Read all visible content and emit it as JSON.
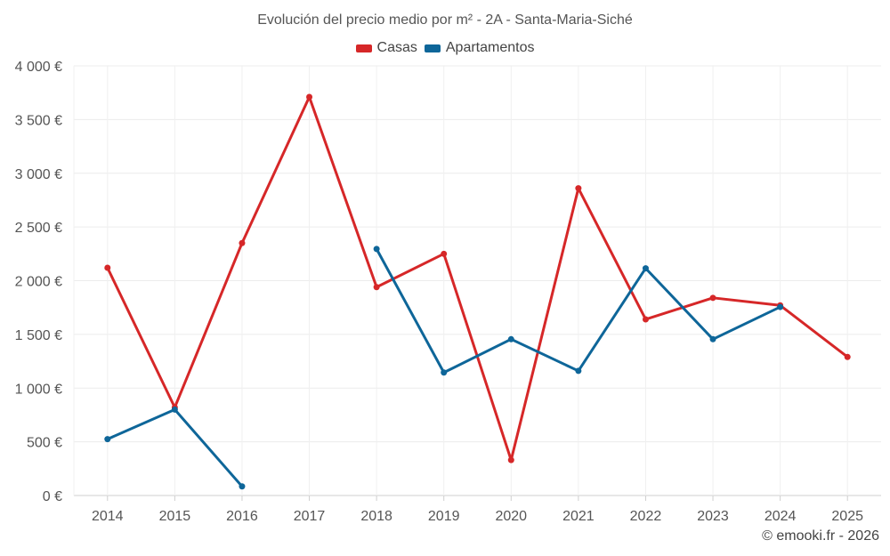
{
  "chart_data": {
    "type": "line",
    "title": "Evolución del precio medio por m² - 2A - Santa-Maria-Siché",
    "categories": [
      "2014",
      "2015",
      "2016",
      "2017",
      "2018",
      "2019",
      "2020",
      "2021",
      "2022",
      "2023",
      "2024",
      "2025"
    ],
    "ylim": [
      0,
      4000
    ],
    "yticks": [
      0,
      500,
      1000,
      1500,
      2000,
      2500,
      3000,
      3500,
      4000
    ],
    "ytick_labels": [
      "0 €",
      "500 €",
      "1 000 €",
      "1 500 €",
      "2 000 €",
      "2 500 €",
      "3 000 €",
      "3 500 €",
      "4 000 €"
    ],
    "grid": true,
    "legend_position": "top-center",
    "series": [
      {
        "name": "Casas",
        "color": "#d62728",
        "values": [
          2120,
          820,
          2350,
          3710,
          1940,
          2250,
          330,
          2860,
          1640,
          1840,
          1770,
          1290
        ]
      },
      {
        "name": "Apartamentos",
        "color": "#0e6699",
        "values": [
          525,
          800,
          85,
          null,
          2295,
          1145,
          1455,
          1160,
          2115,
          1455,
          1755,
          null
        ]
      }
    ]
  },
  "credit": "© emooki.fr - 2026"
}
